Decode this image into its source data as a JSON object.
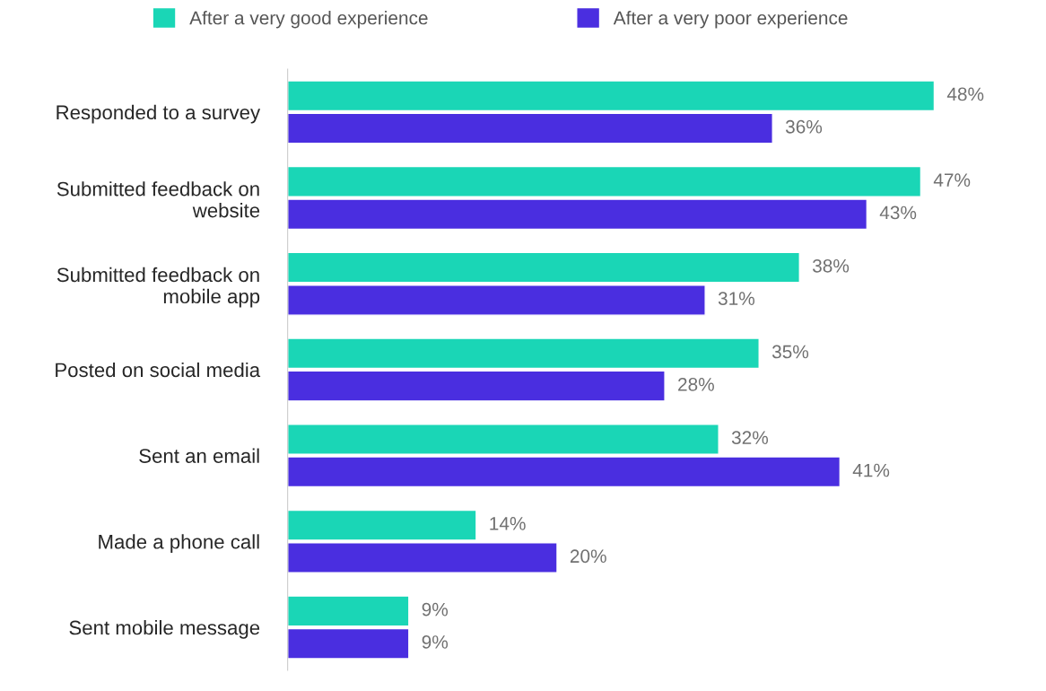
{
  "chart_data": {
    "type": "bar",
    "orientation": "horizontal",
    "categories": [
      "Responded to a survey",
      "Submitted feedback on\nwebsite",
      "Submitted feedback on\nmobile app",
      "Posted on social media",
      "Sent an email",
      "Made a phone call",
      "Sent mobile message"
    ],
    "series": [
      {
        "name": "After a very good experience",
        "color": "#1ad6b6",
        "values": [
          48,
          47,
          38,
          35,
          32,
          14,
          9
        ],
        "value_labels": [
          "48%",
          "47%",
          "38%",
          "35%",
          "32%",
          "14%",
          "9%"
        ]
      },
      {
        "name": "After a very poor experience",
        "color": "#4a2ee0",
        "values": [
          36,
          43,
          31,
          28,
          41,
          20,
          9
        ],
        "value_labels": [
          "36%",
          "43%",
          "31%",
          "28%",
          "41%",
          "20%",
          "9%"
        ]
      }
    ],
    "legend": "top",
    "grid": false
  }
}
